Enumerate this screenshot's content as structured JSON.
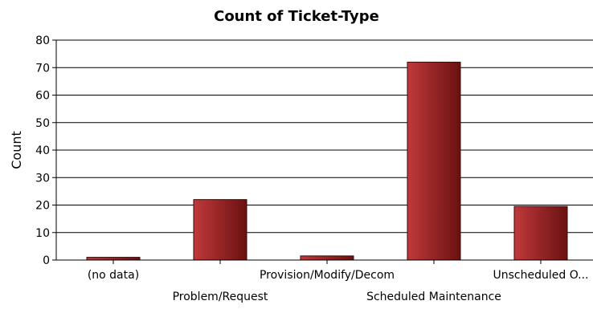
{
  "chart_data": {
    "type": "bar",
    "title": "Count of Ticket-Type",
    "xlabel": "",
    "ylabel": "Count",
    "categories": [
      "(no data)",
      "Problem/Request",
      "Provision/Modify/Decom",
      "Scheduled Maintenance",
      "Unscheduled O..."
    ],
    "values": [
      1,
      22,
      1.5,
      72,
      19.5
    ],
    "ylim": [
      0,
      80
    ],
    "yticks": [
      0,
      10,
      20,
      30,
      40,
      50,
      60,
      70,
      80
    ],
    "grid": true,
    "legend": "none",
    "colors": {
      "bar_light": "#c0393a",
      "bar_dark": "#6a1111",
      "bar_stroke": "#3a0a0a",
      "grid": "#000000",
      "axis": "#000000"
    }
  }
}
